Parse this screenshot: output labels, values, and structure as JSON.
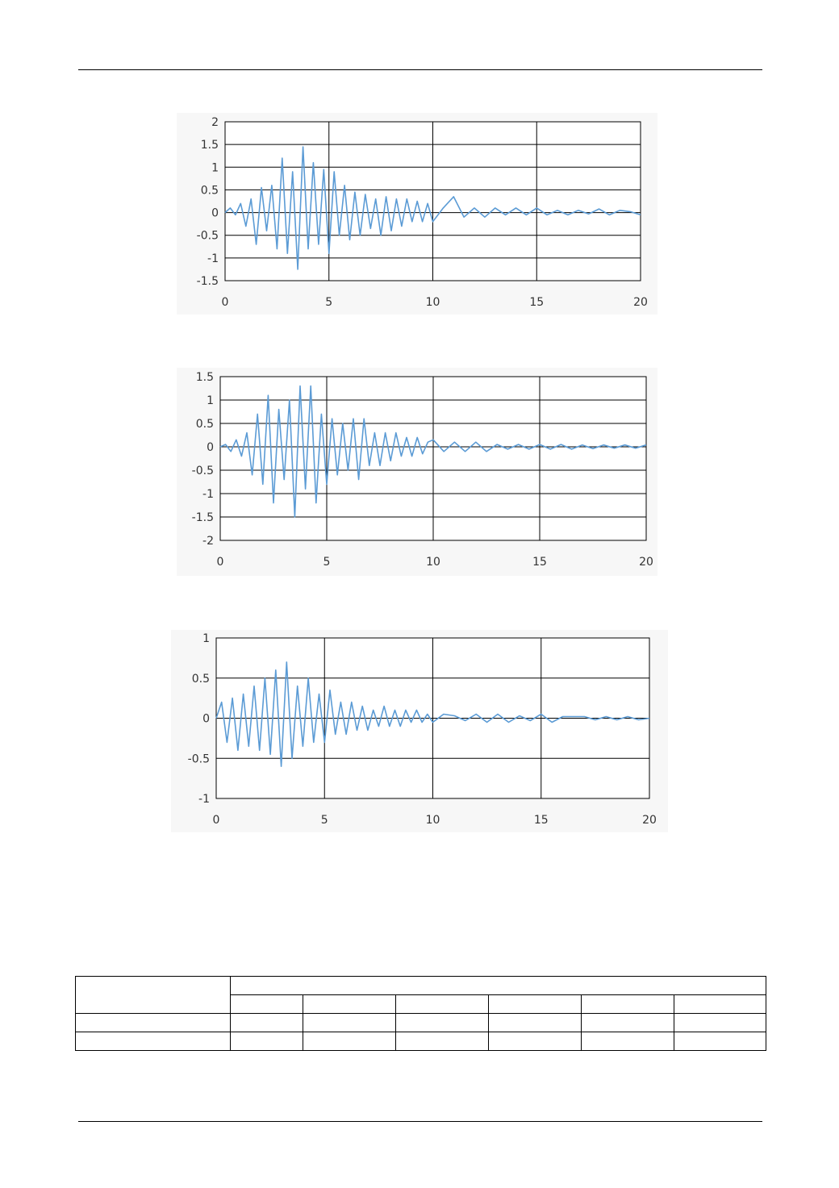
{
  "chart_data": [
    {
      "type": "line",
      "xlim": [
        0,
        20
      ],
      "ylim": [
        -1.5,
        2
      ],
      "xticks": [
        "0",
        "5",
        "10",
        "15",
        "20"
      ],
      "yticks": [
        "2",
        "1.5",
        "1",
        "0.5",
        "0",
        "-0.5",
        "-1",
        "-1.5"
      ],
      "grid": true,
      "line_color": "#5b9bd5",
      "series": [
        {
          "x": [
            0,
            0.25,
            0.5,
            0.75,
            1,
            1.25,
            1.5,
            1.75,
            2,
            2.25,
            2.5,
            2.75,
            3,
            3.25,
            3.5,
            3.75,
            4,
            4.25,
            4.5,
            4.75,
            5,
            5.25,
            5.5,
            5.75,
            6,
            6.25,
            6.5,
            6.75,
            7,
            7.25,
            7.5,
            7.75,
            8,
            8.25,
            8.5,
            8.75,
            9,
            9.25,
            9.5,
            9.75,
            10,
            10.5,
            11,
            11.5,
            12,
            12.5,
            13,
            13.5,
            14,
            14.5,
            15,
            15.5,
            16,
            16.5,
            17,
            17.5,
            18,
            18.5,
            19,
            19.5,
            20
          ],
          "values": [
            0,
            0.1,
            -0.05,
            0.2,
            -0.3,
            0.3,
            -0.7,
            0.55,
            -0.4,
            0.6,
            -0.8,
            1.2,
            -0.9,
            0.9,
            -1.25,
            1.45,
            -0.8,
            1.1,
            -0.7,
            0.95,
            -0.9,
            0.9,
            -0.5,
            0.6,
            -0.6,
            0.45,
            -0.5,
            0.4,
            -0.35,
            0.3,
            -0.5,
            0.35,
            -0.4,
            0.3,
            -0.3,
            0.3,
            -0.2,
            0.25,
            -0.2,
            0.2,
            -0.2,
            0.1,
            0.35,
            -0.1,
            0.1,
            -0.1,
            0.1,
            -0.05,
            0.1,
            -0.05,
            0.1,
            -0.05,
            0.05,
            -0.05,
            0.05,
            -0.03,
            0.08,
            -0.05,
            0.05,
            0.02,
            -0.05
          ]
        }
      ]
    },
    {
      "type": "line",
      "xlim": [
        0,
        20
      ],
      "ylim": [
        -2,
        1.5
      ],
      "xticks": [
        "0",
        "5",
        "10",
        "15",
        "20"
      ],
      "yticks": [
        "1.5",
        "1",
        "0.5",
        "0",
        "-0.5",
        "-1",
        "-1.5",
        "-2"
      ],
      "grid": true,
      "line_color": "#5b9bd5",
      "series": [
        {
          "x": [
            0,
            0.25,
            0.5,
            0.75,
            1,
            1.25,
            1.5,
            1.75,
            2,
            2.25,
            2.5,
            2.75,
            3,
            3.25,
            3.5,
            3.75,
            4,
            4.25,
            4.5,
            4.75,
            5,
            5.25,
            5.5,
            5.75,
            6,
            6.25,
            6.5,
            6.75,
            7,
            7.25,
            7.5,
            7.75,
            8,
            8.25,
            8.5,
            8.75,
            9,
            9.25,
            9.5,
            9.75,
            10,
            10.5,
            11,
            11.5,
            12,
            12.5,
            13,
            13.5,
            14,
            14.5,
            15,
            15.5,
            16,
            16.5,
            17,
            17.5,
            18,
            18.5,
            19,
            19.5,
            20
          ],
          "values": [
            0,
            0.05,
            -0.1,
            0.15,
            -0.2,
            0.3,
            -0.6,
            0.7,
            -0.8,
            1.1,
            -1.2,
            0.8,
            -0.7,
            1.0,
            -1.5,
            1.3,
            -0.9,
            1.3,
            -1.2,
            0.7,
            -0.8,
            0.6,
            -0.6,
            0.5,
            -0.5,
            0.6,
            -0.7,
            0.6,
            -0.4,
            0.3,
            -0.4,
            0.3,
            -0.3,
            0.3,
            -0.2,
            0.2,
            -0.2,
            0.2,
            -0.15,
            0.1,
            0.15,
            -0.1,
            0.1,
            -0.1,
            0.1,
            -0.1,
            0.05,
            -0.05,
            0.05,
            -0.05,
            0.05,
            -0.05,
            0.05,
            -0.05,
            0.04,
            -0.04,
            0.04,
            -0.03,
            0.04,
            -0.03,
            0.04
          ]
        }
      ]
    },
    {
      "type": "line",
      "xlim": [
        0,
        20
      ],
      "ylim": [
        -1,
        1
      ],
      "xticks": [
        "0",
        "5",
        "10",
        "15",
        "20"
      ],
      "yticks": [
        "1",
        "0.5",
        "0",
        "-0.5",
        "-1"
      ],
      "grid": true,
      "line_color": "#5b9bd5",
      "series": [
        {
          "x": [
            0,
            0.25,
            0.5,
            0.75,
            1,
            1.25,
            1.5,
            1.75,
            2,
            2.25,
            2.5,
            2.75,
            3,
            3.25,
            3.5,
            3.75,
            4,
            4.25,
            4.5,
            4.75,
            5,
            5.25,
            5.5,
            5.75,
            6,
            6.25,
            6.5,
            6.75,
            7,
            7.25,
            7.5,
            7.75,
            8,
            8.25,
            8.5,
            8.75,
            9,
            9.25,
            9.5,
            9.75,
            10,
            10.5,
            11,
            11.5,
            12,
            12.5,
            13,
            13.5,
            14,
            14.5,
            15,
            15.5,
            16,
            16.5,
            17,
            17.5,
            18,
            18.5,
            19,
            19.5,
            20
          ],
          "values": [
            0,
            0.2,
            -0.3,
            0.25,
            -0.4,
            0.3,
            -0.35,
            0.4,
            -0.4,
            0.5,
            -0.45,
            0.6,
            -0.6,
            0.7,
            -0.5,
            0.4,
            -0.35,
            0.5,
            -0.3,
            0.3,
            -0.3,
            0.35,
            -0.2,
            0.2,
            -0.2,
            0.2,
            -0.15,
            0.15,
            -0.15,
            0.1,
            -0.1,
            0.15,
            -0.1,
            0.1,
            -0.1,
            0.1,
            -0.05,
            0.1,
            -0.05,
            0.05,
            -0.05,
            0.05,
            0.03,
            -0.03,
            0.05,
            -0.05,
            0.05,
            -0.05,
            0.03,
            -0.03,
            0.05,
            -0.05,
            0.02,
            0.02,
            0.02,
            -0.02,
            0.02,
            -0.02,
            0.02,
            -0.02,
            0
          ]
        }
      ]
    }
  ],
  "table": {
    "header_cells": [
      "",
      ""
    ],
    "sub_header_cells": [
      "",
      "",
      "",
      "",
      "",
      ""
    ],
    "rows": [
      [
        "",
        "",
        "",
        "",
        "",
        "",
        ""
      ],
      [
        "",
        "",
        "",
        "",
        "",
        "",
        ""
      ]
    ]
  }
}
